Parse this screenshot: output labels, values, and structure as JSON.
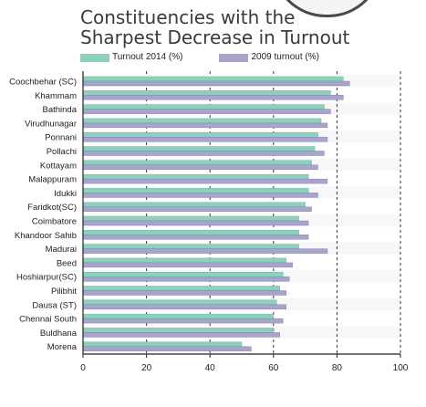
{
  "title_lines": [
    "Constituencies with the",
    "Sharpest Decrease in Turnout"
  ],
  "chart_data": {
    "type": "bar",
    "orientation": "horizontal",
    "title": "Constituencies with the Sharpest Decrease in Turnout",
    "categories": [
      "Coochbehar (SC)",
      "Khammam",
      "Bathinda",
      "Virudhunagar",
      "Ponnani",
      "Pollachi",
      "Kottayam",
      "Malappuram",
      "Idukki",
      "Faridkot(SC)",
      "Coimbatore",
      "Khandoor Sahib",
      "Madurai",
      "Beed",
      "Hoshiarpur(SC)",
      "Pilibhit",
      "Dausa (ST)",
      "Chennai South",
      "Buldhana",
      "Morena"
    ],
    "series": [
      {
        "name": "Turnout 2014 (%)",
        "color": "#8cd1c0",
        "values": [
          82,
          78,
          76,
          75,
          74,
          73,
          72,
          71,
          71,
          70,
          68,
          68,
          68,
          64,
          63,
          62,
          61,
          60,
          60,
          50
        ]
      },
      {
        "name": "2009 turnout (%)",
        "color": "#a8a4cc",
        "values": [
          84,
          82,
          78,
          77,
          77,
          76,
          74,
          77,
          74,
          72,
          71,
          71,
          77,
          66,
          65,
          64,
          64,
          63,
          62,
          53
        ]
      }
    ],
    "xlim": [
      0,
      100
    ],
    "xticks": [
      0,
      20,
      40,
      60,
      80,
      100
    ],
    "grid": "dashed vertical",
    "legend_position": "top"
  }
}
